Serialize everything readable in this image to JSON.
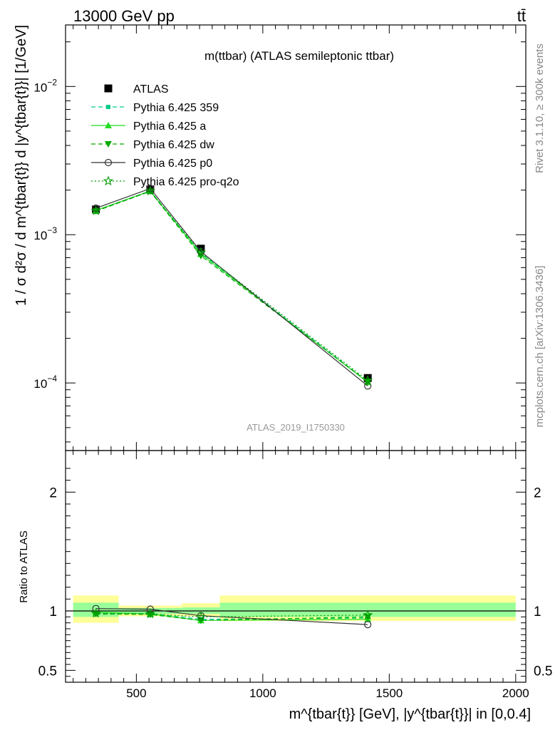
{
  "header": {
    "left": "13000 GeV pp",
    "right": "tt̄"
  },
  "side_labels": {
    "rivet": "Rivet 3.1.10, ≥ 300k events",
    "mcplots": "mcplots.cern.ch [arXiv:1306.3436]"
  },
  "watermark": "ATLAS_2019_I1750330",
  "colors": {
    "data": "#000000",
    "band_inner": "#99ff99",
    "band_outer": "#ffff99",
    "p359": "#00cc88",
    "pa": "#22dd22",
    "pdw": "#00aa00",
    "pp0": "#333333",
    "pq2o": "#009900"
  },
  "chart_data": [
    {
      "type": "line",
      "title": "m(ttbar) (ATLAS semileptonic ttbar)",
      "xlabel": "m^{tbar{t}} [GeV], |y^{tbar{t}}| in [0,0.4]",
      "ylabel": "1 / σ d²σ / d m^{tbar{t}} d |y^{tbar{t}}| [1/GeV]",
      "ylog": true,
      "xlim": [
        220,
        2040
      ],
      "ylim": [
        3.5e-05,
        0.026
      ],
      "y_tick_labels": [
        {
          "base": "10",
          "exp": "−4"
        },
        {
          "base": "10",
          "exp": "−3"
        },
        {
          "base": "10",
          "exp": "−2"
        }
      ],
      "x": [
        340,
        555,
        755,
        1415
      ],
      "series": [
        {
          "name": "ATLAS",
          "marker": "square",
          "values": [
            0.00148,
            0.00202,
            0.000805,
            0.000108
          ]
        },
        {
          "name": "Pythia 6.425 359",
          "marker": "square-small",
          "dash": "dashed",
          "values": [
            0.00145,
            0.00198,
            0.00075,
            0.000102
          ]
        },
        {
          "name": "Pythia 6.425 a",
          "marker": "triangle-up",
          "dash": "solid",
          "values": [
            0.00146,
            0.00197,
            0.00074,
            0.000101
          ]
        },
        {
          "name": "Pythia 6.425 dw",
          "marker": "triangle-down",
          "dash": "dashed",
          "values": [
            0.00144,
            0.00196,
            0.00072,
            0.000102
          ]
        },
        {
          "name": "Pythia 6.425 p0",
          "marker": "circle-open",
          "dash": "solid",
          "values": [
            0.00151,
            0.00205,
            0.00077,
            9.55e-05
          ]
        },
        {
          "name": "Pythia 6.425 pro-q2o",
          "marker": "star-open",
          "dash": "dotted",
          "values": [
            0.00145,
            0.00197,
            0.00076,
            0.000104
          ]
        }
      ]
    },
    {
      "type": "line",
      "ylabel": "Ratio to ATLAS",
      "xlim": [
        220,
        2040
      ],
      "ylim": [
        0.4,
        2.35
      ],
      "x_tick_labels": [
        "500",
        "1000",
        "1500",
        "2000"
      ],
      "y_tick_labels": [
        "0.5",
        "1",
        "2"
      ],
      "bins": [
        [
          250,
          430
        ],
        [
          430,
          680
        ],
        [
          680,
          830
        ],
        [
          830,
          2000
        ]
      ],
      "band_inner": [
        [
          0.95,
          1.07
        ],
        [
          0.975,
          1.025
        ],
        [
          0.975,
          1.03
        ],
        [
          0.95,
          1.07
        ]
      ],
      "band_outer": [
        [
          0.9,
          1.13
        ],
        [
          0.955,
          1.045
        ],
        [
          0.955,
          1.065
        ],
        [
          0.915,
          1.13
        ]
      ],
      "x": [
        340,
        555,
        755,
        1415
      ],
      "series": [
        {
          "name": "Pythia 6.425 359",
          "values": [
            0.98,
            0.98,
            0.93,
            0.94
          ]
        },
        {
          "name": "Pythia 6.425 a",
          "values": [
            0.99,
            0.975,
            0.92,
            0.93
          ]
        },
        {
          "name": "Pythia 6.425 dw",
          "values": [
            0.975,
            0.97,
            0.92,
            0.95
          ]
        },
        {
          "name": "Pythia 6.425 p0",
          "values": [
            1.02,
            1.015,
            0.96,
            0.885
          ]
        },
        {
          "name": "Pythia 6.425 pro-q2o",
          "values": [
            0.98,
            0.975,
            0.95,
            0.965
          ]
        }
      ]
    }
  ]
}
